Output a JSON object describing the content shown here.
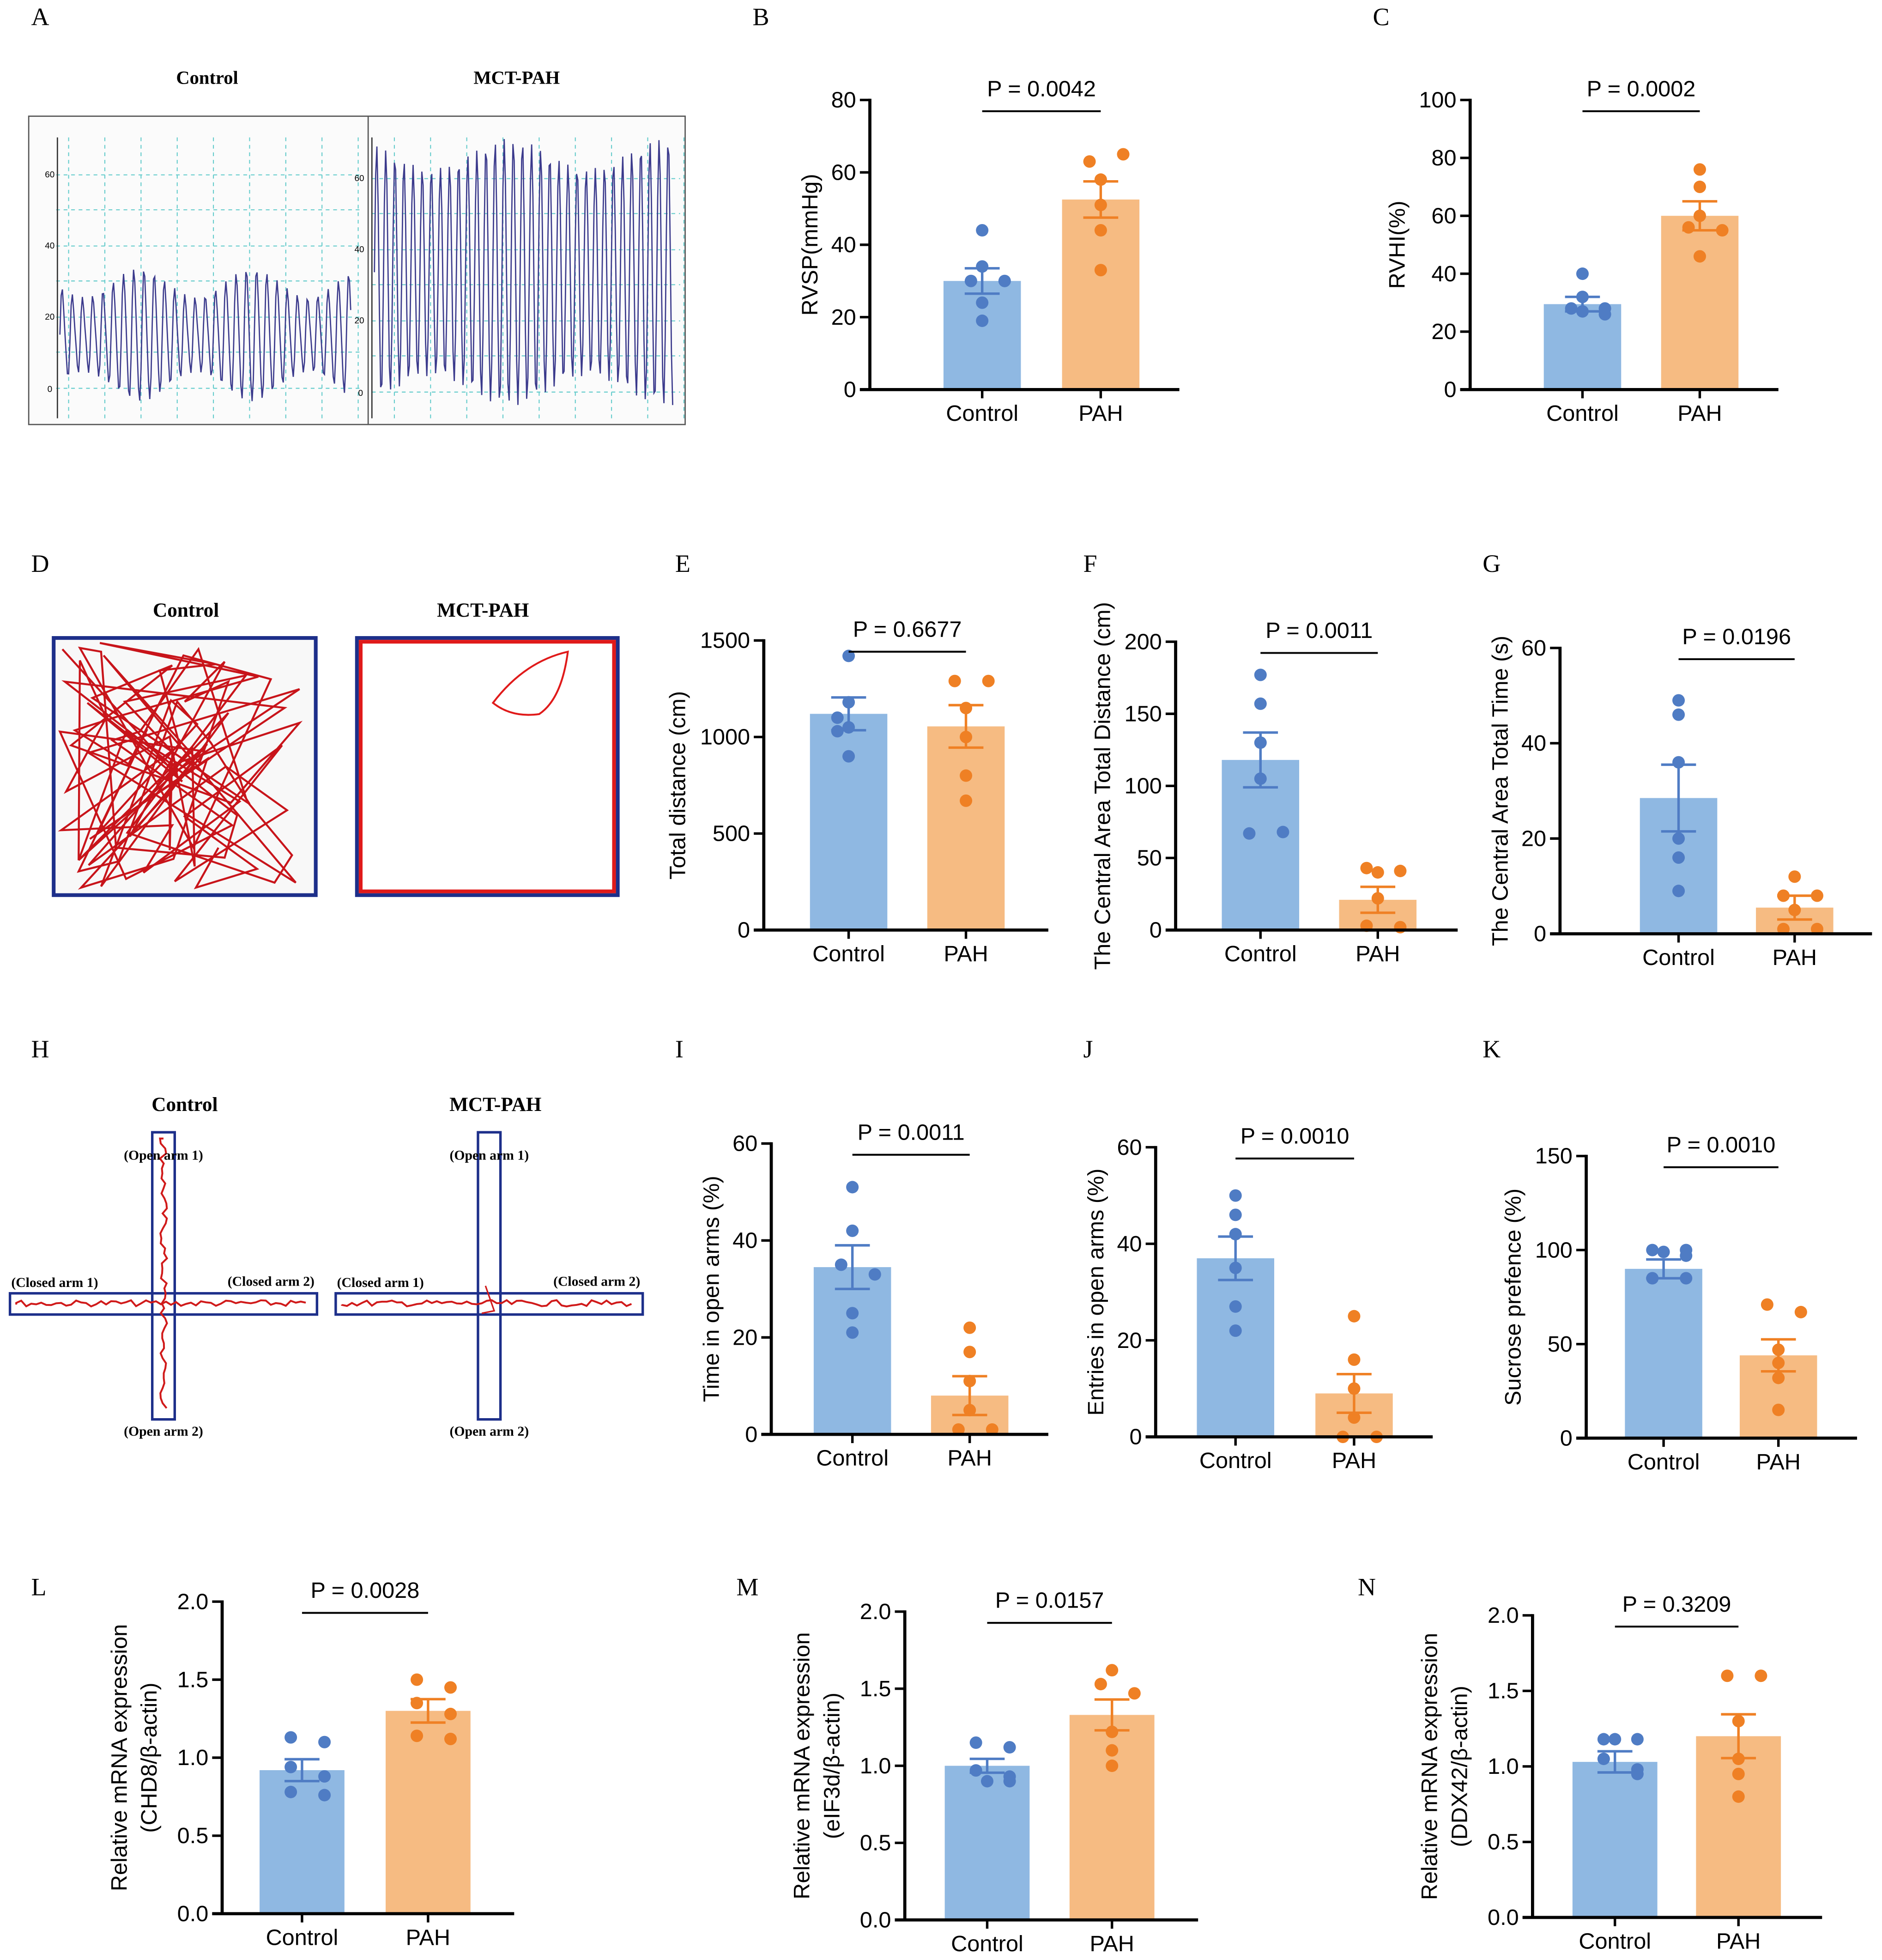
{
  "panel_labels": [
    "A",
    "B",
    "C",
    "D",
    "E",
    "F",
    "G",
    "H",
    "I",
    "J",
    "K",
    "L",
    "M",
    "N"
  ],
  "panelA": {
    "control": "Control",
    "pah": "MCT-PAH",
    "ticks_left": [
      "60",
      "40",
      "20",
      "0"
    ],
    "ticks_right": [
      "60",
      "40",
      "20",
      "0"
    ]
  },
  "panelD": {
    "control": "Control",
    "pah": "MCT-PAH"
  },
  "panelH": {
    "control": "Control",
    "pah": "MCT-PAH",
    "open1": "(Open arm 1)",
    "open2": "(Open arm 2)",
    "closed1": "(Closed arm 1)",
    "closed2": "(Closed arm 2)"
  },
  "colors": {
    "control_bar": "#8fb8e2",
    "control_dot": "#4f7cc4",
    "pah_bar": "#f6bb82",
    "pah_dot": "#ef8024"
  },
  "chart_data": [
    {
      "id": "B",
      "type": "bar",
      "categories": [
        "Control",
        "PAH"
      ],
      "ylabel": "RVSP(mmHg)",
      "ylim": [
        0,
        80
      ],
      "yticks": [
        "0",
        "20",
        "40",
        "60",
        "80"
      ],
      "p": "P = 0.0042",
      "means": [
        30,
        52.5
      ],
      "sem": [
        3.5,
        5
      ],
      "points": [
        [
          44,
          34,
          30,
          30,
          24,
          19
        ],
        [
          63,
          65,
          58,
          51,
          44,
          33
        ]
      ]
    },
    {
      "id": "C",
      "type": "bar",
      "categories": [
        "Control",
        "PAH"
      ],
      "ylabel": "RVHI(%)",
      "ylim": [
        0,
        100
      ],
      "yticks": [
        "0",
        "20",
        "40",
        "60",
        "80",
        "100"
      ],
      "p": "P = 0.0002",
      "means": [
        29.5,
        60
      ],
      "sem": [
        2.5,
        5
      ],
      "points": [
        [
          40,
          32,
          28,
          28,
          27,
          26
        ],
        [
          76,
          70,
          60,
          56,
          55,
          46
        ]
      ]
    },
    {
      "id": "E",
      "type": "bar",
      "categories": [
        "Control",
        "PAH"
      ],
      "ylabel": "Total distance (cm)",
      "ylim": [
        0,
        1500
      ],
      "yticks": [
        "0",
        "500",
        "1000",
        "1500"
      ],
      "p": "P = 0.6677",
      "means": [
        1120,
        1055
      ],
      "sem": [
        85,
        110
      ],
      "points": [
        [
          1420,
          1180,
          1030,
          1100,
          900,
          1050
        ],
        [
          1290,
          1290,
          1150,
          1000,
          800,
          670
        ]
      ]
    },
    {
      "id": "F",
      "type": "bar",
      "categories": [
        "Control",
        "PAH"
      ],
      "ylabel": "The Central Area Total Distance (cm)",
      "ylim": [
        0,
        200
      ],
      "yticks": [
        "0",
        "50",
        "100",
        "150",
        "200"
      ],
      "p": "P = 0.0011",
      "means": [
        118,
        21
      ],
      "sem": [
        19,
        9
      ],
      "points": [
        [
          177,
          157,
          130,
          105,
          67,
          68
        ],
        [
          43,
          41,
          40,
          22,
          3,
          2
        ]
      ]
    },
    {
      "id": "G",
      "type": "bar",
      "categories": [
        "Control",
        "PAH"
      ],
      "ylabel": "The Central Area Total Time (s)",
      "ylim": [
        0,
        60
      ],
      "yticks": [
        "0",
        "20",
        "40",
        "60"
      ],
      "p": "P = 0.0196",
      "means": [
        28.5,
        5.5
      ],
      "sem": [
        7,
        2.5
      ],
      "points": [
        [
          49,
          46,
          36,
          20,
          16,
          9
        ],
        [
          12,
          8,
          8,
          5,
          1,
          1
        ]
      ]
    },
    {
      "id": "I",
      "type": "bar",
      "categories": [
        "Control",
        "PAH"
      ],
      "ylabel": "Time in open arms (%)",
      "ylim": [
        0,
        60
      ],
      "yticks": [
        "0",
        "20",
        "40",
        "60"
      ],
      "p": "P = 0.0011",
      "means": [
        34.5,
        8
      ],
      "sem": [
        4.5,
        4
      ],
      "points": [
        [
          51,
          42,
          35,
          33,
          25,
          21
        ],
        [
          22,
          17,
          11,
          5,
          1,
          1
        ]
      ]
    },
    {
      "id": "J",
      "type": "bar",
      "categories": [
        "Control",
        "PAH"
      ],
      "ylabel": "Entries in open arms (%)",
      "ylim": [
        0,
        60
      ],
      "yticks": [
        "0",
        "20",
        "40",
        "60"
      ],
      "p": "P = 0.0010",
      "means": [
        37,
        9
      ],
      "sem": [
        4.5,
        4
      ],
      "points": [
        [
          50,
          46,
          42,
          35,
          27,
          22
        ],
        [
          25,
          16,
          10,
          4,
          0,
          0
        ]
      ]
    },
    {
      "id": "K",
      "type": "bar",
      "categories": [
        "Control",
        "PAH"
      ],
      "ylabel": "Sucrose prefence (%)",
      "ylim": [
        0,
        150
      ],
      "yticks": [
        "0",
        "50",
        "100",
        "150"
      ],
      "p": "P = 0.0010",
      "means": [
        90,
        44
      ],
      "sem": [
        5,
        8.5
      ],
      "points": [
        [
          100,
          100,
          99,
          97,
          85,
          85
        ],
        [
          71,
          67,
          47,
          40,
          32,
          15
        ]
      ]
    },
    {
      "id": "L",
      "type": "bar",
      "categories": [
        "Control",
        "PAH"
      ],
      "ylabel": "Relative mRNA expression",
      "ylabel2": "(CHD8/β-actin)",
      "ylim": [
        0,
        2
      ],
      "yticks": [
        "0.0",
        "0.5",
        "1.0",
        "1.5",
        "2.0"
      ],
      "p": "P = 0.0028",
      "means": [
        0.92,
        1.3
      ],
      "sem": [
        0.07,
        0.075
      ],
      "points": [
        [
          1.13,
          1.1,
          0.94,
          0.88,
          0.78,
          0.76
        ],
        [
          1.5,
          1.45,
          1.35,
          1.28,
          1.14,
          1.12
        ]
      ]
    },
    {
      "id": "M",
      "type": "bar",
      "categories": [
        "Control",
        "PAH"
      ],
      "ylabel": "Relative mRNA expression",
      "ylabel2": "(eIF3d/β-actin)",
      "ylim": [
        0,
        2
      ],
      "yticks": [
        "0.0",
        "0.5",
        "1.0",
        "1.5",
        "2.0"
      ],
      "p": "P = 0.0157",
      "means": [
        1.0,
        1.33
      ],
      "sem": [
        0.045,
        0.1
      ],
      "points": [
        [
          1.15,
          1.12,
          0.97,
          0.93,
          0.9,
          0.9
        ],
        [
          1.62,
          1.53,
          1.47,
          1.22,
          1.1,
          1.0
        ]
      ]
    },
    {
      "id": "N",
      "type": "bar",
      "categories": [
        "Control",
        "PAH"
      ],
      "ylabel": "Relative mRNA expression",
      "ylabel2": "(DDX42/β-actin)",
      "ylim": [
        0,
        2
      ],
      "yticks": [
        "0.0",
        "0.5",
        "1.0",
        "1.5",
        "2.0"
      ],
      "p": "P = 0.3209",
      "means": [
        1.03,
        1.2
      ],
      "sem": [
        0.07,
        0.145
      ],
      "points": [
        [
          1.18,
          1.18,
          1.18,
          1.05,
          0.98,
          0.95
        ],
        [
          1.6,
          1.6,
          1.3,
          1.05,
          0.95,
          0.8
        ]
      ]
    }
  ]
}
